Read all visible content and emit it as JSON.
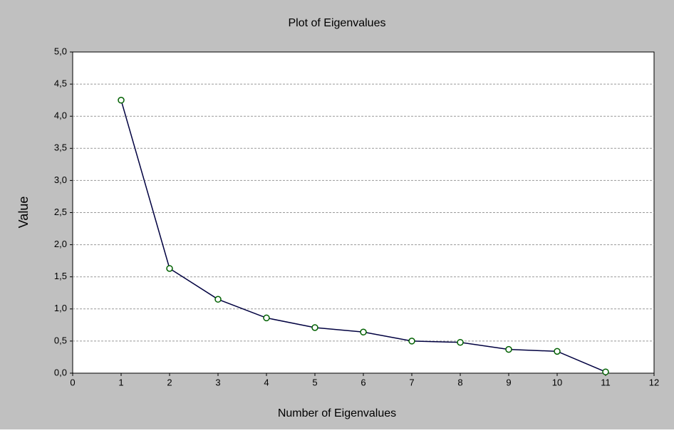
{
  "chart_data": {
    "type": "line",
    "title": "Plot of Eigenvalues",
    "xlabel": "Number of Eigenvalues",
    "ylabel": "Value",
    "x": [
      1,
      2,
      3,
      4,
      5,
      6,
      7,
      8,
      9,
      10,
      11
    ],
    "series": [
      {
        "name": "Value",
        "color": "#000040",
        "marker_color": "#006000",
        "values": [
          4.25,
          1.63,
          1.15,
          0.86,
          0.71,
          0.64,
          0.5,
          0.48,
          0.37,
          0.34,
          0.02
        ]
      }
    ],
    "xlim": [
      0,
      12
    ],
    "xticks": [
      0,
      1,
      2,
      3,
      4,
      5,
      6,
      7,
      8,
      9,
      10,
      11,
      12
    ],
    "ylim": [
      0,
      5
    ],
    "yticks": [
      {
        "value": 0,
        "label": "0,0"
      },
      {
        "value": 0.5,
        "label": "0,5"
      },
      {
        "value": 1,
        "label": "1,0"
      },
      {
        "value": 1.5,
        "label": "1,5"
      },
      {
        "value": 2,
        "label": "2,0"
      },
      {
        "value": 2.5,
        "label": "2,5"
      },
      {
        "value": 3,
        "label": "3,0"
      },
      {
        "value": 3.5,
        "label": "3,5"
      },
      {
        "value": 4,
        "label": "4,0"
      },
      {
        "value": 4.5,
        "label": "4,5"
      },
      {
        "value": 5,
        "label": "5,0"
      }
    ],
    "grid": true
  }
}
